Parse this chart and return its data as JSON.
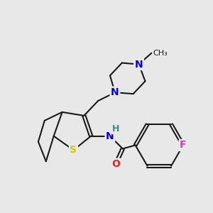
{
  "bg_color": "#e8e8e8",
  "bond_color": "#1a1a1a",
  "bond_width": 1.5,
  "atom_colors": {
    "N": "#0000ee",
    "S": "#cccc00",
    "O": "#ee2222",
    "F": "#cc44cc",
    "C": "#1a1a1a",
    "H": "#448888"
  },
  "font_size_atom": 10,
  "font_size_me": 9,
  "figsize": [
    3.0,
    3.0
  ],
  "dpi": 100
}
